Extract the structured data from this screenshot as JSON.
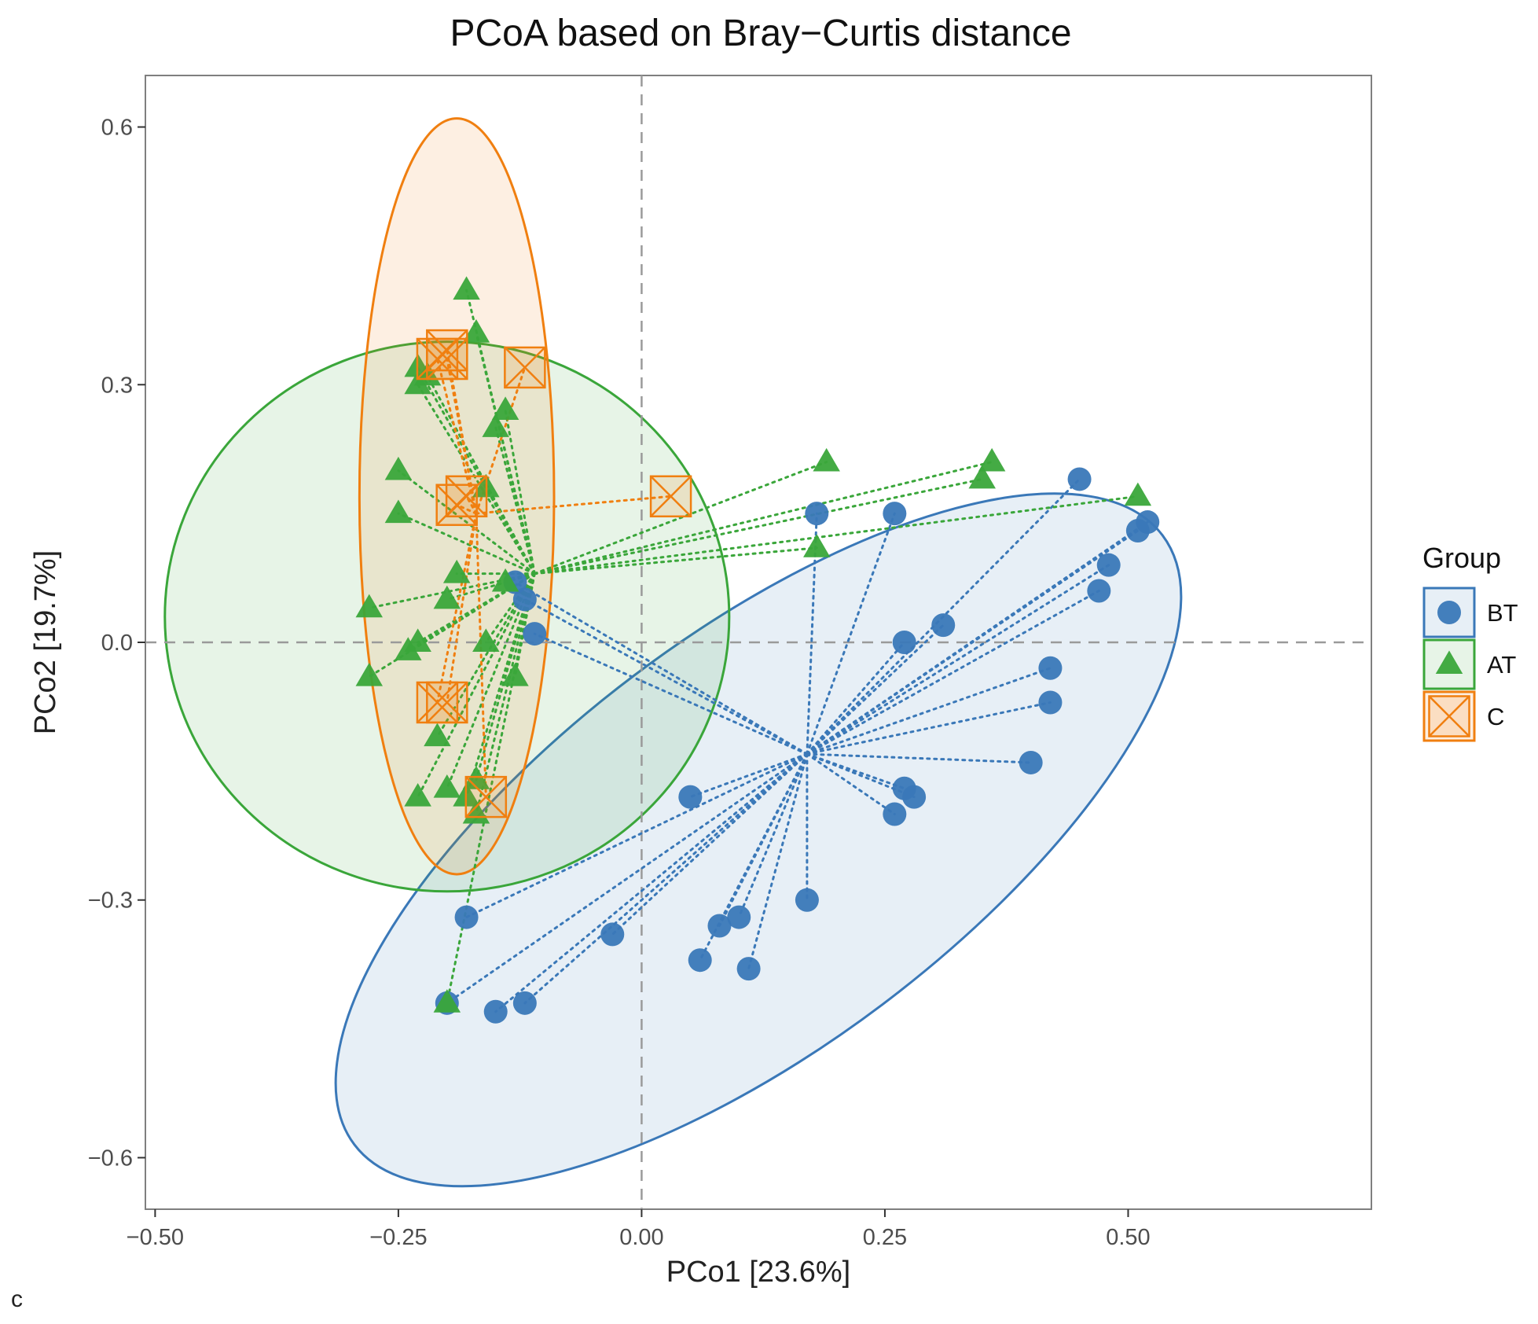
{
  "chart_data": {
    "type": "scatter",
    "title": "PCoA based on Bray−Curtis distance",
    "xlabel": "PCo1 [23.6%]",
    "ylabel": "PCo2 [19.7%]",
    "xlim": [
      -0.51,
      0.75
    ],
    "ylim": [
      -0.66,
      0.66
    ],
    "xticks": [
      -0.5,
      -0.25,
      0,
      0.25,
      0.5
    ],
    "xtick_labels": [
      "−0.50",
      "−0.25",
      "0.00",
      "0.25",
      "0.50"
    ],
    "yticks": [
      -0.6,
      -0.3,
      0,
      0.3,
      0.6
    ],
    "ytick_labels": [
      "−0.6",
      "−0.3",
      "0.0",
      "0.3",
      "0.6"
    ],
    "grid": false,
    "reference_lines": {
      "x": 0,
      "y": 0,
      "style": "dashed"
    },
    "legend": {
      "title": "Group",
      "position": "right",
      "entries": [
        {
          "label": "BT",
          "marker": "circle",
          "color": "#3a78b8"
        },
        {
          "label": "AT",
          "marker": "triangle",
          "color": "#3aa63a"
        },
        {
          "label": "C",
          "marker": "square-cross",
          "color": "#f07f10"
        }
      ]
    },
    "panel_label": "c",
    "series": [
      {
        "name": "BT",
        "marker": "circle",
        "color": "#3a78b8",
        "centroid": [
          0.17,
          -0.13
        ],
        "ellipse": {
          "center": [
            0.12,
            -0.23
          ],
          "rx": 0.52,
          "ry": 0.24,
          "angle_deg": 37
        },
        "points": [
          [
            -0.13,
            0.07
          ],
          [
            -0.12,
            0.05
          ],
          [
            -0.11,
            0.01
          ],
          [
            0.18,
            0.15
          ],
          [
            0.26,
            0.15
          ],
          [
            0.27,
            0.0
          ],
          [
            0.31,
            0.02
          ],
          [
            0.45,
            0.19
          ],
          [
            0.51,
            0.13
          ],
          [
            0.52,
            0.14
          ],
          [
            0.48,
            0.09
          ],
          [
            0.47,
            0.06
          ],
          [
            0.42,
            -0.03
          ],
          [
            0.42,
            -0.07
          ],
          [
            0.4,
            -0.14
          ],
          [
            0.27,
            -0.17
          ],
          [
            0.28,
            -0.18
          ],
          [
            0.26,
            -0.2
          ],
          [
            0.05,
            -0.18
          ],
          [
            0.17,
            -0.3
          ],
          [
            0.1,
            -0.32
          ],
          [
            0.08,
            -0.33
          ],
          [
            -0.03,
            -0.34
          ],
          [
            0.06,
            -0.37
          ],
          [
            0.11,
            -0.38
          ],
          [
            -0.18,
            -0.32
          ],
          [
            -0.2,
            -0.42
          ],
          [
            -0.15,
            -0.43
          ],
          [
            -0.12,
            -0.42
          ]
        ]
      },
      {
        "name": "AT",
        "marker": "triangle",
        "color": "#3aa63a",
        "centroid": [
          -0.11,
          0.08
        ],
        "ellipse": {
          "center": [
            -0.2,
            0.03
          ],
          "rx": 0.29,
          "ry": 0.32,
          "angle_deg": 0
        },
        "points": [
          [
            -0.18,
            0.41
          ],
          [
            -0.17,
            0.36
          ],
          [
            -0.23,
            0.32
          ],
          [
            -0.23,
            0.3
          ],
          [
            -0.22,
            0.31
          ],
          [
            -0.14,
            0.27
          ],
          [
            -0.15,
            0.25
          ],
          [
            -0.25,
            0.2
          ],
          [
            -0.25,
            0.15
          ],
          [
            -0.16,
            0.18
          ],
          [
            -0.19,
            0.08
          ],
          [
            -0.2,
            0.05
          ],
          [
            -0.28,
            0.04
          ],
          [
            -0.23,
            0.0
          ],
          [
            -0.24,
            -0.01
          ],
          [
            -0.16,
            0.0
          ],
          [
            -0.14,
            0.07
          ],
          [
            -0.13,
            -0.04
          ],
          [
            -0.28,
            -0.04
          ],
          [
            -0.21,
            -0.11
          ],
          [
            -0.17,
            -0.16
          ],
          [
            -0.2,
            -0.17
          ],
          [
            -0.18,
            -0.18
          ],
          [
            -0.23,
            -0.18
          ],
          [
            -0.17,
            -0.2
          ],
          [
            0.19,
            0.21
          ],
          [
            0.35,
            0.19
          ],
          [
            0.36,
            0.21
          ],
          [
            0.51,
            0.17
          ],
          [
            0.18,
            0.11
          ],
          [
            -0.2,
            -0.42
          ]
        ]
      },
      {
        "name": "C",
        "marker": "square-cross",
        "color": "#f07f10",
        "centroid": [
          -0.17,
          0.15
        ],
        "ellipse": {
          "center": [
            -0.19,
            0.17
          ],
          "rx": 0.1,
          "ry": 0.44,
          "angle_deg": 0
        },
        "points": [
          [
            -0.2,
            0.34
          ],
          [
            -0.21,
            0.33
          ],
          [
            -0.2,
            0.33
          ],
          [
            -0.12,
            0.32
          ],
          [
            -0.18,
            0.17
          ],
          [
            -0.19,
            0.16
          ],
          [
            0.03,
            0.17
          ],
          [
            -0.21,
            -0.07
          ],
          [
            -0.2,
            -0.07
          ],
          [
            -0.16,
            -0.18
          ]
        ]
      }
    ]
  }
}
